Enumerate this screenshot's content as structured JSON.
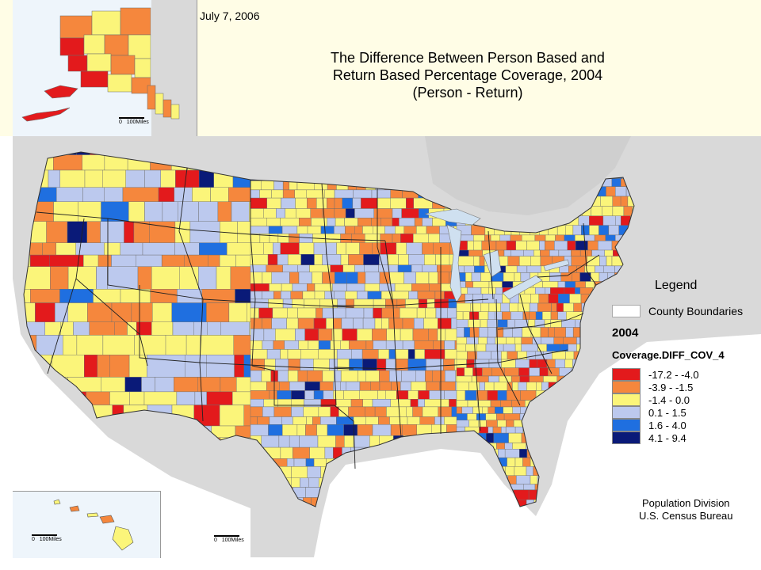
{
  "date": "July 7, 2006",
  "title": {
    "line1": "The Difference Between Person Based and",
    "line2": "Return Based Percentage Coverage, 2004",
    "line3": "(Person - Return)"
  },
  "legend": {
    "title": "Legend",
    "boundary_label": "County Boundaries",
    "year": "2004",
    "field": "Coverage.DIFF_COV_4",
    "classes": [
      {
        "label": "-17.2 - -4.0",
        "color": "#e31a1c"
      },
      {
        "label": "-3.9 - -1.5",
        "color": "#f5873d"
      },
      {
        "label": "-1.4 - 0.0",
        "color": "#fbf57a"
      },
      {
        "label": "0.1 - 1.5",
        "color": "#bcc9ee"
      },
      {
        "label": "1.6 - 4.0",
        "color": "#1f6fe0"
      },
      {
        "label": "4.1 - 9.4",
        "color": "#0a1a78"
      }
    ]
  },
  "credit": {
    "line1": "Population Division",
    "line2": "U.S. Census Bureau"
  },
  "scale": {
    "zero": "0",
    "label": "100Miles"
  },
  "colors": {
    "boundary": "#6b6b6b",
    "ocean": "#ffffff",
    "land_outside": "#d9d9d9"
  }
}
